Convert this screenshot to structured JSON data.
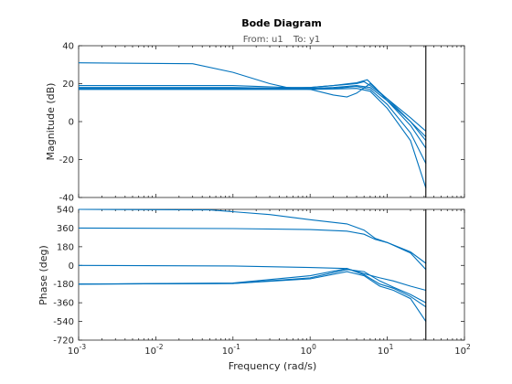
{
  "chart_data": {
    "type": "line",
    "title": "Bode Diagram",
    "subtitle": {
      "from_label": "From: u1",
      "to_label": "To: y1"
    },
    "xlabel": "Frequency  (rad/s)",
    "xscale": "log",
    "xlim": [
      0.001,
      100
    ],
    "x_ticks": [
      {
        "value": 0.001,
        "label": "10",
        "exp": "-3"
      },
      {
        "value": 0.01,
        "label": "10",
        "exp": "-2"
      },
      {
        "value": 0.1,
        "label": "10",
        "exp": "-1"
      },
      {
        "value": 1,
        "label": "10",
        "exp": "0"
      },
      {
        "value": 10,
        "label": "10",
        "exp": "1"
      },
      {
        "value": 100,
        "label": "10",
        "exp": "2"
      }
    ],
    "vertical_line_x": 31.6,
    "line_color": "#0072BD",
    "magnitude": {
      "ylabel": "Magnitude (dB)",
      "ylim": [
        -40,
        40
      ],
      "yticks": [
        -40,
        -20,
        0,
        20,
        40
      ],
      "series": [
        {
          "x": [
            0.001,
            0.03,
            0.1,
            0.3,
            0.5,
            1,
            2,
            4,
            5.5,
            7,
            10,
            20,
            31.6
          ],
          "y": [
            31,
            30.5,
            26,
            20,
            18,
            18,
            19,
            20.5,
            22,
            18,
            11,
            0,
            -8
          ]
        },
        {
          "x": [
            0.001,
            0.1,
            0.5,
            1,
            2,
            3,
            4,
            6,
            10,
            20,
            31.6
          ],
          "y": [
            19,
            19,
            18,
            17,
            14,
            13,
            15,
            20,
            12,
            2,
            -5
          ]
        },
        {
          "x": [
            0.001,
            0.1,
            0.5,
            1,
            2,
            4,
            5,
            6,
            10,
            20,
            31.6
          ],
          "y": [
            18,
            18,
            17.5,
            18,
            19,
            20,
            21,
            19,
            12,
            0,
            -10
          ]
        },
        {
          "x": [
            0.001,
            0.1,
            0.5,
            1,
            2,
            4,
            6,
            10,
            20,
            31.6
          ],
          "y": [
            17.5,
            17.5,
            17.5,
            17.5,
            18,
            19,
            18,
            11,
            -2,
            -14
          ]
        },
        {
          "x": [
            0.001,
            0.1,
            0.5,
            1,
            2,
            4,
            6,
            10,
            20,
            31.6
          ],
          "y": [
            17,
            17,
            17,
            17,
            17.5,
            18.5,
            17,
            9,
            -6,
            -22
          ]
        },
        {
          "x": [
            0.001,
            0.1,
            0.5,
            1,
            2,
            4,
            6,
            10,
            20,
            31.6
          ],
          "y": [
            17,
            17,
            17,
            17,
            17.2,
            17.5,
            16,
            7,
            -10,
            -35
          ]
        }
      ]
    },
    "phase": {
      "ylabel": "Phase (deg)",
      "ylim": [
        -720,
        540
      ],
      "yticks": [
        -720,
        -540,
        -360,
        -180,
        0,
        180,
        360,
        540
      ],
      "series": [
        {
          "x": [
            0.001,
            0.05,
            0.3,
            1,
            3,
            5,
            7,
            10,
            20,
            31.6
          ],
          "y": [
            540,
            535,
            490,
            440,
            400,
            340,
            260,
            220,
            130,
            20
          ]
        },
        {
          "x": [
            0.001,
            0.1,
            1,
            3,
            5,
            7,
            10,
            20,
            31.6
          ],
          "y": [
            360,
            355,
            345,
            330,
            300,
            250,
            220,
            120,
            -40
          ]
        },
        {
          "x": [
            0.001,
            0.1,
            1,
            3,
            5,
            8,
            12,
            20,
            31.6
          ],
          "y": [
            0,
            -5,
            -20,
            -30,
            -80,
            -120,
            -150,
            -200,
            -240
          ]
        },
        {
          "x": [
            0.001,
            0.1,
            1,
            3,
            5,
            8,
            12,
            20,
            31.6
          ],
          "y": [
            -180,
            -175,
            -120,
            -40,
            -60,
            -150,
            -210,
            -280,
            -360
          ]
        },
        {
          "x": [
            0.001,
            0.1,
            1,
            3,
            5,
            8,
            12,
            20,
            31.6
          ],
          "y": [
            -180,
            -170,
            -100,
            -30,
            -90,
            -180,
            -220,
            -300,
            -400
          ]
        },
        {
          "x": [
            0.001,
            0.1,
            1,
            3,
            5,
            8,
            12,
            20,
            31.6
          ],
          "y": [
            -180,
            -175,
            -130,
            -60,
            -100,
            -200,
            -240,
            -320,
            -540
          ]
        }
      ]
    }
  }
}
